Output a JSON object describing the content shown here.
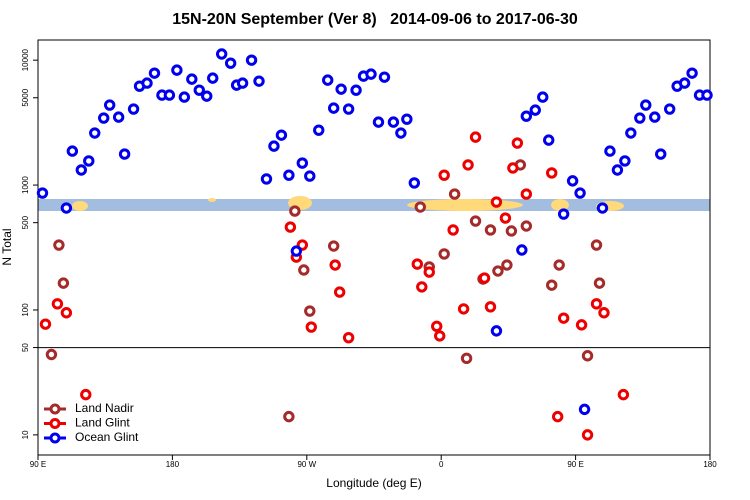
{
  "chart_data": {
    "type": "scatter",
    "title": "15N-20N September (Ver 8)   2014-09-06 to 2017-06-30",
    "x_label": "Longitude (deg E)",
    "y_label": "N Total",
    "xlim": [
      90,
      540
    ],
    "xticks": [
      {
        "value": 90,
        "label": "90 E"
      },
      {
        "value": 180,
        "label": "180"
      },
      {
        "value": 270,
        "label": "90 W"
      },
      {
        "value": 360,
        "label": "0"
      },
      {
        "value": 450,
        "label": "90 E"
      },
      {
        "value": 540,
        "label": "180"
      }
    ],
    "ylim": [
      6.9,
      14500
    ],
    "yticks": [
      10,
      50,
      100,
      500,
      1000,
      5000,
      10000
    ],
    "log_y": true,
    "legend": "lower left",
    "series": [
      {
        "name": "Land Nadir",
        "color": "#a52a2a",
        "x": [
          99,
          104,
          107,
          258,
          262,
          268,
          272,
          288,
          346,
          352,
          362,
          369,
          377,
          383,
          388,
          393,
          398,
          404,
          407,
          413,
          417,
          434,
          439,
          458,
          464,
          466
        ],
        "values": [
          44,
          331,
          164,
          14,
          619,
          209,
          98,
          325,
          667,
          221,
          281,
          847,
          41,
          515,
          177,
          437,
          205,
          229,
          429,
          1450,
          470,
          158,
          229,
          43,
          331,
          164
        ]
      },
      {
        "name": "Land Glint",
        "color": "#ee0000",
        "x": [
          95,
          103,
          109,
          122,
          259,
          263,
          267,
          273,
          289,
          292,
          298,
          344,
          347,
          352,
          357,
          359,
          362,
          368,
          375,
          378,
          383,
          389,
          393,
          397,
          403,
          408,
          411,
          417,
          434,
          438,
          442,
          454,
          458,
          464,
          469,
          482
        ],
        "values": [
          77,
          112,
          95,
          21,
          461,
          265,
          331,
          73,
          229,
          139,
          60,
          233,
          153,
          201,
          74,
          62,
          1200,
          437,
          102,
          1450,
          2420,
          180,
          106,
          731,
          544,
          1370,
          2170,
          847,
          1250,
          14,
          86,
          76,
          10,
          112,
          95,
          21
        ]
      },
      {
        "name": "Ocean Glint",
        "color": "#0000ee",
        "x": [
          93,
          109,
          113,
          119,
          124,
          128,
          134,
          138,
          144,
          148,
          154,
          158,
          163,
          168,
          173,
          178,
          183,
          188,
          193,
          198,
          203,
          207,
          213,
          219,
          223,
          227,
          233,
          238,
          243,
          248,
          253,
          258,
          263,
          267,
          272,
          278,
          284,
          288,
          293,
          298,
          303,
          308,
          313,
          318,
          322,
          328,
          333,
          337,
          342,
          397,
          414,
          417,
          423,
          428,
          432,
          442,
          448,
          453,
          456,
          468,
          473,
          478,
          483,
          487,
          493,
          497,
          503,
          507,
          513,
          518,
          523,
          528,
          533,
          538
        ],
        "values": [
          863,
          655,
          1870,
          1320,
          1560,
          2610,
          3440,
          4370,
          3500,
          1770,
          4060,
          6190,
          6550,
          7870,
          5250,
          5250,
          8320,
          5060,
          7050,
          5750,
          5150,
          7180,
          11200,
          9460,
          6310,
          6550,
          10000,
          6790,
          1120,
          2050,
          2510,
          1200,
          296,
          1500,
          1180,
          2750,
          6920,
          4130,
          5860,
          4060,
          5750,
          7450,
          7730,
          3190,
          7310,
          3190,
          2610,
          3370,
          1040,
          68,
          302,
          3560,
          3980,
          5060,
          2290,
          586,
          1080,
          863,
          16,
          655,
          1870,
          1320,
          1560,
          2610,
          3440,
          4370,
          3500,
          1770,
          4060,
          6190,
          6550,
          7870,
          5250,
          5250
        ]
      }
    ]
  }
}
